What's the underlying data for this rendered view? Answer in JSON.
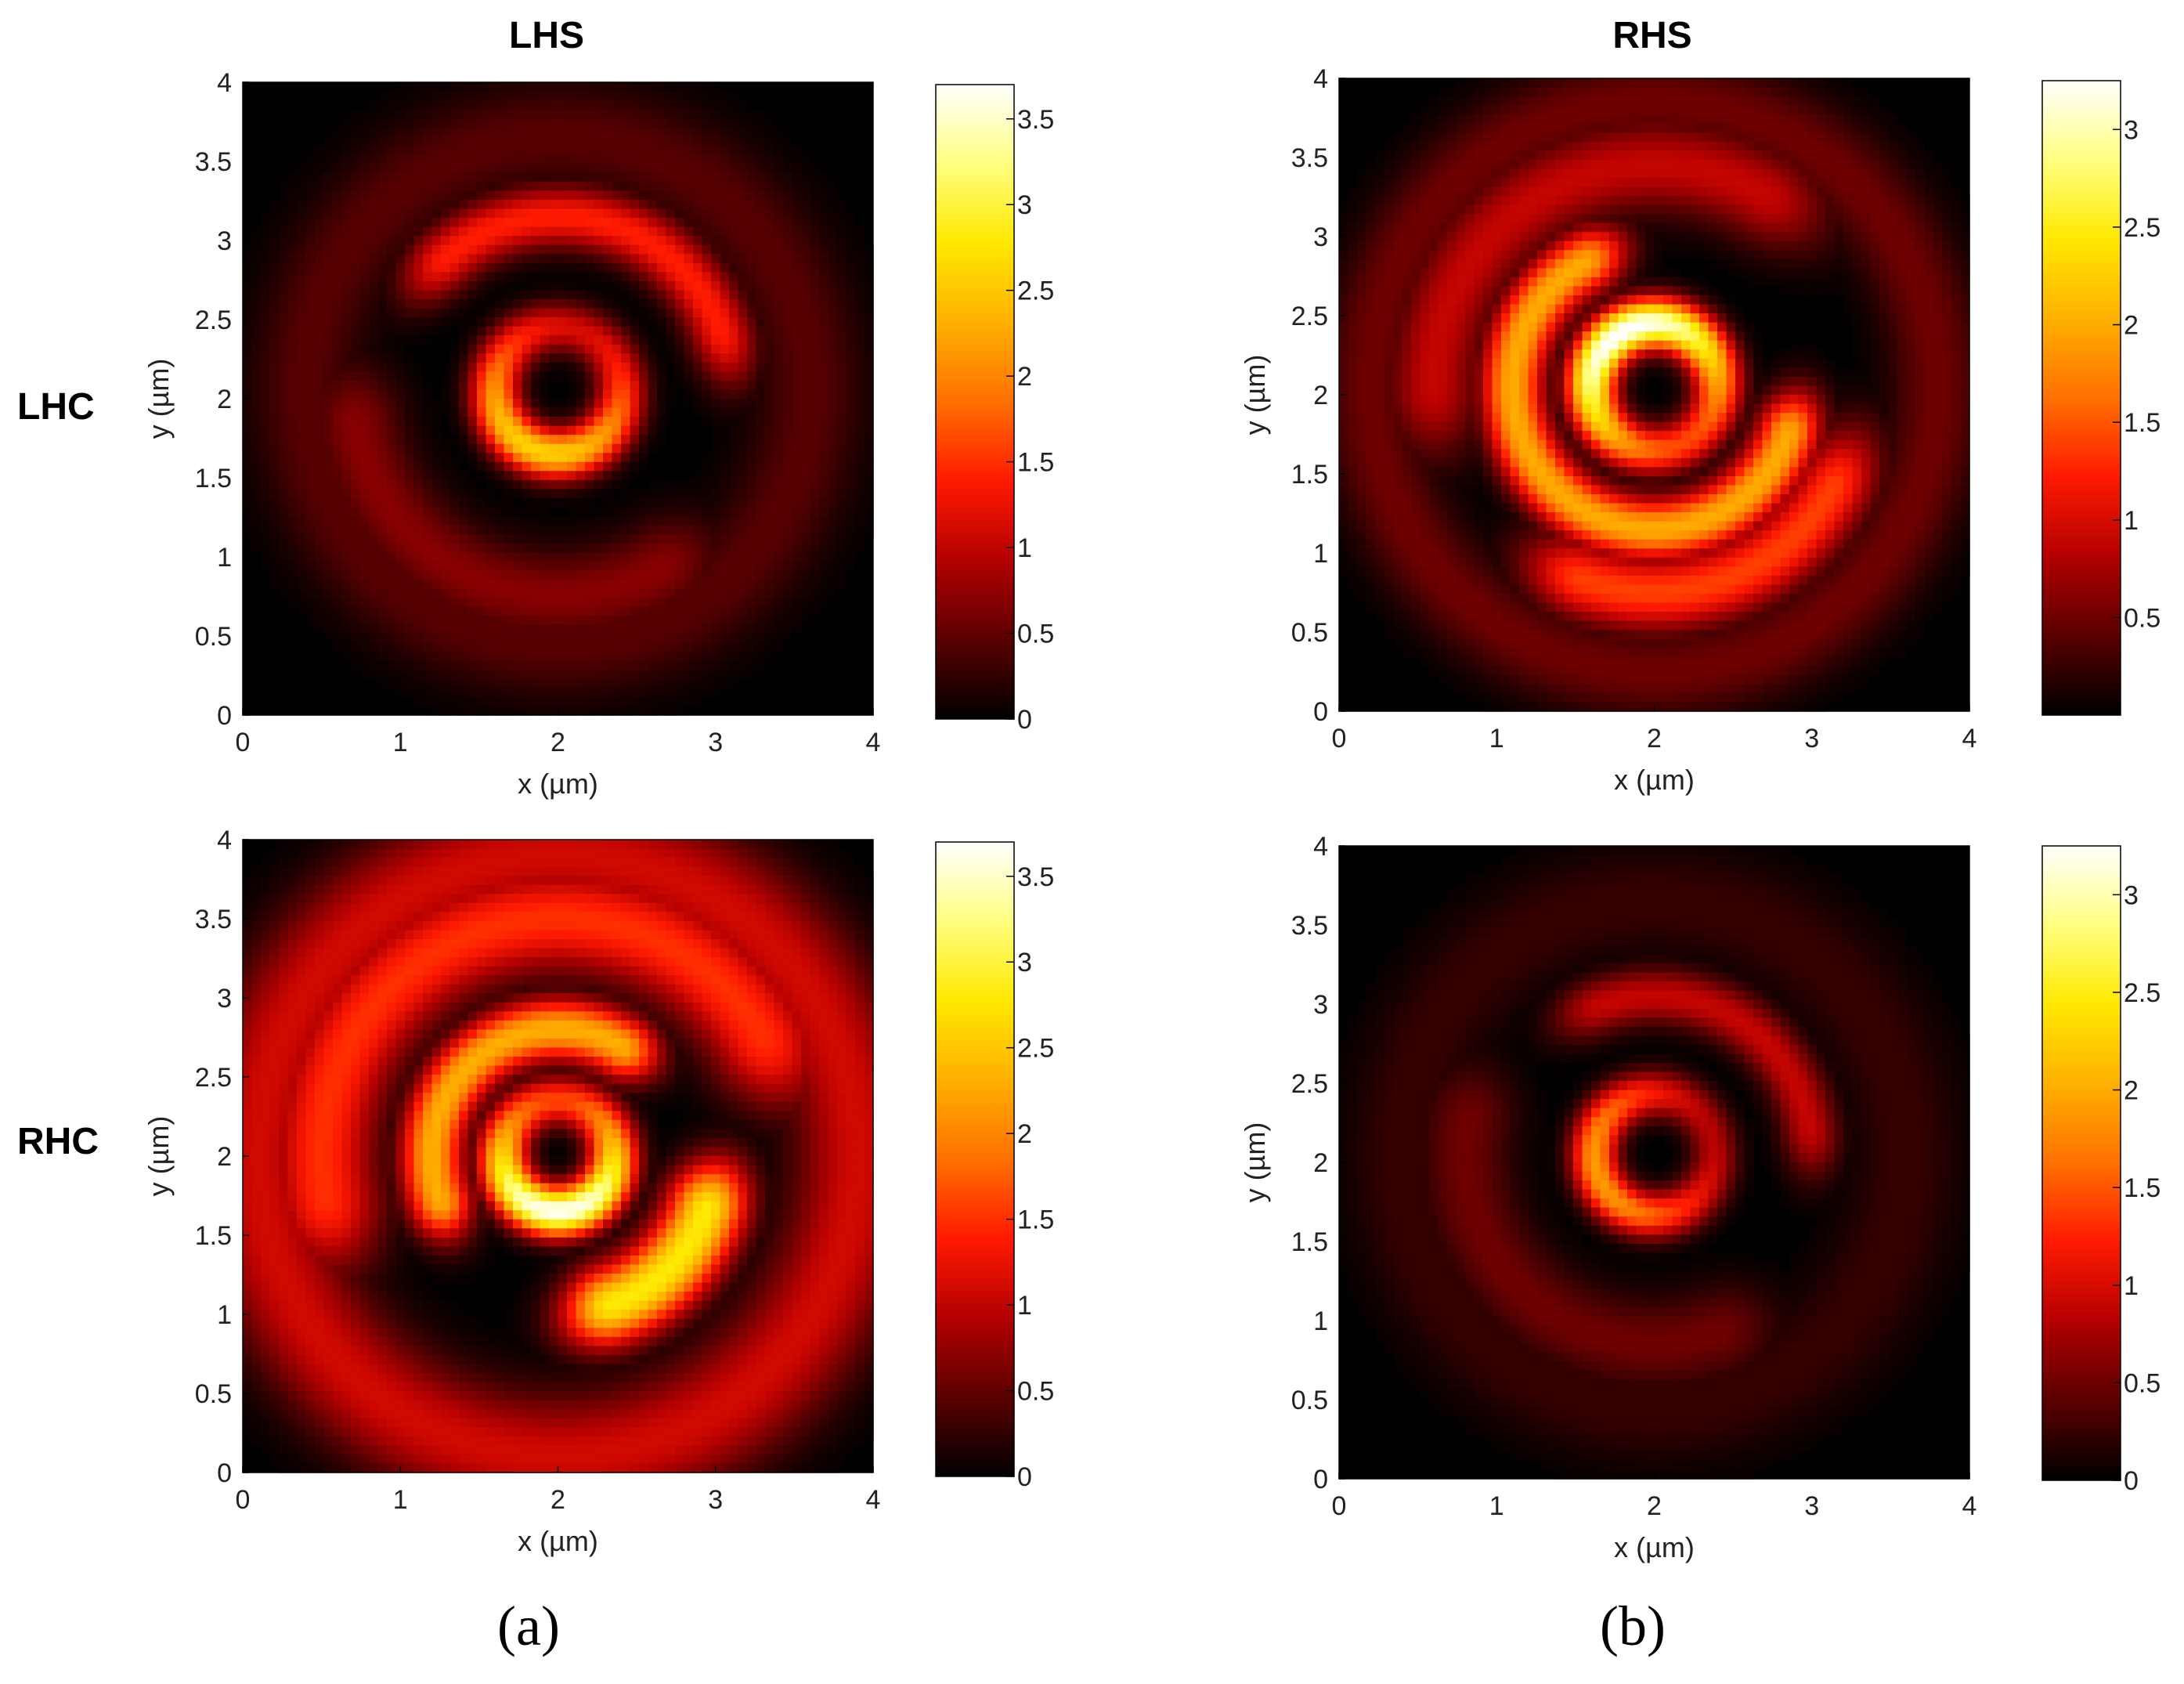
{
  "column_titles": [
    "LHS",
    "RHS"
  ],
  "row_titles": [
    "LHC",
    "RHC"
  ],
  "captions": [
    "(a)",
    "(b)"
  ],
  "colors": {
    "colormap": [
      "#000000",
      "#5a0000",
      "#b30000",
      "#ff1a00",
      "#ff7000",
      "#ffb000",
      "#ffe800",
      "#ffff80",
      "#ffffff"
    ]
  },
  "chart_data": [
    {
      "type": "heatmap",
      "panel": "LHS-LHC",
      "xlabel": "x (µm)",
      "ylabel": "y (µm)",
      "xlim": [
        0,
        4
      ],
      "ylim": [
        0,
        4
      ],
      "xticks": [
        "0",
        "1",
        "2",
        "3",
        "4"
      ],
      "yticks": [
        "0",
        "0.5",
        "1",
        "1.5",
        "2",
        "2.5",
        "3",
        "3.5",
        "4"
      ],
      "colorbar": {
        "range": [
          0,
          3.7
        ],
        "ticks": [
          0,
          0.5,
          1,
          1.5,
          2,
          2.5,
          3,
          3.5
        ],
        "tick_labels": [
          "0",
          "0.5",
          "1",
          "1.5",
          "2",
          "2.5",
          "3",
          "3.5"
        ]
      },
      "features": [
        {
          "kind": "ring",
          "cx": 2.0,
          "cy": 2.05,
          "r": 0.4,
          "width": 0.16,
          "peak": 2.6,
          "hot_angle": 250
        },
        {
          "kind": "arc",
          "cx": 2.0,
          "cy": 2.05,
          "r": 1.1,
          "width": 0.2,
          "peak": 1.4,
          "a0": 20,
          "a1": 130
        },
        {
          "kind": "arc",
          "cx": 2.0,
          "cy": 2.05,
          "r": 1.3,
          "width": 0.3,
          "peak": 0.7,
          "a0": 190,
          "a1": 300
        },
        {
          "kind": "arc",
          "cx": 2.0,
          "cy": 2.05,
          "r": 1.6,
          "width": 0.35,
          "peak": 0.45,
          "a0": 0,
          "a1": 360
        }
      ]
    },
    {
      "type": "heatmap",
      "panel": "RHS-LHC",
      "xlabel": "x (µm)",
      "ylabel": "y (µm)",
      "xlim": [
        0,
        4
      ],
      "ylim": [
        0,
        4
      ],
      "xticks": [
        "0",
        "1",
        "2",
        "3",
        "4"
      ],
      "yticks": [
        "0",
        "0.5",
        "1",
        "1.5",
        "2",
        "2.5",
        "3",
        "3.5",
        "4"
      ],
      "colorbar": {
        "range": [
          0,
          3.25
        ],
        "ticks": [
          0.5,
          1,
          1.5,
          2,
          2.5,
          3
        ],
        "tick_labels": [
          "0.5",
          "1",
          "1.5",
          "2",
          "2.5",
          "3"
        ]
      },
      "features": [
        {
          "kind": "ring",
          "cx": 2.0,
          "cy": 2.05,
          "r": 0.4,
          "width": 0.16,
          "peak": 3.3,
          "hot_angle": 120
        },
        {
          "kind": "arc",
          "cx": 2.0,
          "cy": 2.05,
          "r": 0.9,
          "width": 0.2,
          "peak": 2.0,
          "a0": 120,
          "a1": 340
        },
        {
          "kind": "arc",
          "cx": 2.0,
          "cy": 2.05,
          "r": 1.3,
          "width": 0.25,
          "peak": 1.4,
          "a0": 250,
          "a1": 330
        },
        {
          "kind": "arc",
          "cx": 2.0,
          "cy": 2.05,
          "r": 1.4,
          "width": 0.3,
          "peak": 0.9,
          "a0": 60,
          "a1": 180
        },
        {
          "kind": "arc",
          "cx": 2.0,
          "cy": 2.05,
          "r": 1.8,
          "width": 0.3,
          "peak": 0.5,
          "a0": 0,
          "a1": 360
        }
      ]
    },
    {
      "type": "heatmap",
      "panel": "LHS-RHC",
      "xlabel": "x (µm)",
      "ylabel": "y (µm)",
      "xlim": [
        0,
        4
      ],
      "ylim": [
        0,
        4
      ],
      "xticks": [
        "0",
        "1",
        "2",
        "3",
        "4"
      ],
      "yticks": [
        "0",
        "0.5",
        "1",
        "1.5",
        "2",
        "2.5",
        "3",
        "3.5",
        "4"
      ],
      "colorbar": {
        "range": [
          0,
          3.7
        ],
        "ticks": [
          0,
          0.5,
          1,
          1.5,
          2,
          2.5,
          3,
          3.5
        ],
        "tick_labels": [
          "0",
          "0.5",
          "1",
          "1.5",
          "2",
          "2.5",
          "3",
          "3.5"
        ]
      },
      "features": [
        {
          "kind": "ring",
          "cx": 2.0,
          "cy": 2.0,
          "r": 0.35,
          "width": 0.16,
          "peak": 3.7,
          "hot_angle": 270
        },
        {
          "kind": "arc",
          "cx": 2.0,
          "cy": 2.0,
          "r": 0.8,
          "width": 0.2,
          "peak": 2.3,
          "a0": 60,
          "a1": 200
        },
        {
          "kind": "arc",
          "cx": 2.0,
          "cy": 2.0,
          "r": 1.0,
          "width": 0.25,
          "peak": 2.8,
          "a0": 290,
          "a1": 340
        },
        {
          "kind": "arc",
          "cx": 2.0,
          "cy": 2.0,
          "r": 1.5,
          "width": 0.35,
          "peak": 1.5,
          "a0": 30,
          "a1": 190
        },
        {
          "kind": "arc",
          "cx": 2.0,
          "cy": 2.0,
          "r": 1.9,
          "width": 0.4,
          "peak": 1.1,
          "a0": 0,
          "a1": 360
        }
      ]
    },
    {
      "type": "heatmap",
      "panel": "RHS-RHC",
      "xlabel": "x (µm)",
      "ylabel": "y (µm)",
      "xlim": [
        0,
        4
      ],
      "ylim": [
        0,
        4
      ],
      "xticks": [
        "0",
        "1",
        "2",
        "3",
        "4"
      ],
      "yticks": [
        "0",
        "0.5",
        "1",
        "1.5",
        "2",
        "2.5",
        "3",
        "3.5",
        "4"
      ],
      "colorbar": {
        "range": [
          0,
          3.25
        ],
        "ticks": [
          0,
          0.5,
          1,
          1.5,
          2,
          2.5,
          3
        ],
        "tick_labels": [
          "0",
          "0.5",
          "1",
          "1.5",
          "2",
          "2.5",
          "3"
        ]
      },
      "features": [
        {
          "kind": "ring",
          "cx": 2.0,
          "cy": 2.05,
          "r": 0.38,
          "width": 0.15,
          "peak": 1.9,
          "hot_angle": 200
        },
        {
          "kind": "arc",
          "cx": 2.0,
          "cy": 2.05,
          "r": 1.0,
          "width": 0.18,
          "peak": 0.9,
          "a0": 10,
          "a1": 110
        },
        {
          "kind": "arc",
          "cx": 2.0,
          "cy": 2.05,
          "r": 1.2,
          "width": 0.3,
          "peak": 0.5,
          "a0": 170,
          "a1": 290
        },
        {
          "kind": "arc",
          "cx": 2.0,
          "cy": 2.05,
          "r": 1.6,
          "width": 0.35,
          "peak": 0.25,
          "a0": 0,
          "a1": 360
        }
      ]
    }
  ]
}
